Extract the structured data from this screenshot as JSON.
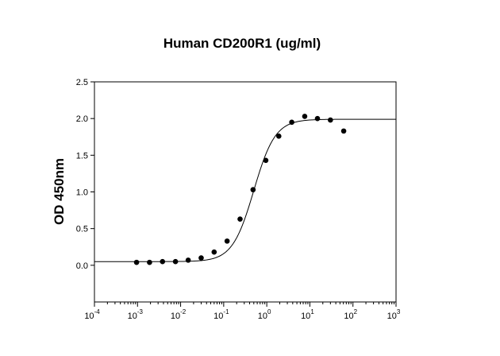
{
  "chart_data": {
    "type": "scatter",
    "title": "Human CD200R1 (ug/ml)",
    "xlabel": "",
    "ylabel": "OD 450nm",
    "x_scale": "log",
    "xlim": [
      0.0001,
      1000
    ],
    "ylim": [
      -0.5,
      2.5
    ],
    "x_ticks": [
      {
        "base": "10",
        "exp": "-4",
        "value": 0.0001
      },
      {
        "base": "10",
        "exp": "-3",
        "value": 0.001
      },
      {
        "base": "10",
        "exp": "-2",
        "value": 0.01
      },
      {
        "base": "10",
        "exp": "-1",
        "value": 0.1
      },
      {
        "base": "10",
        "exp": "0",
        "value": 1
      },
      {
        "base": "10",
        "exp": "1",
        "value": 10
      },
      {
        "base": "10",
        "exp": "2",
        "value": 100
      },
      {
        "base": "10",
        "exp": "3",
        "value": 1000
      }
    ],
    "y_ticks": [
      {
        "label": "0.0",
        "value": 0
      },
      {
        "label": "0.5",
        "value": 0.5
      },
      {
        "label": "1.0",
        "value": 1.0
      },
      {
        "label": "1.5",
        "value": 1.5
      },
      {
        "label": "2.0",
        "value": 2.0
      },
      {
        "label": "2.5",
        "value": 2.5
      }
    ],
    "grid": false,
    "legend": "none",
    "series": [
      {
        "points": [
          {
            "x": 0.00095,
            "y": 0.04
          },
          {
            "x": 0.0019,
            "y": 0.04
          },
          {
            "x": 0.0038,
            "y": 0.05
          },
          {
            "x": 0.0076,
            "y": 0.05
          },
          {
            "x": 0.015,
            "y": 0.07
          },
          {
            "x": 0.03,
            "y": 0.1
          },
          {
            "x": 0.06,
            "y": 0.18
          },
          {
            "x": 0.12,
            "y": 0.33
          },
          {
            "x": 0.24,
            "y": 0.63
          },
          {
            "x": 0.48,
            "y": 1.03
          },
          {
            "x": 0.95,
            "y": 1.43
          },
          {
            "x": 1.9,
            "y": 1.76
          },
          {
            "x": 3.8,
            "y": 1.95
          },
          {
            "x": 7.6,
            "y": 2.03
          },
          {
            "x": 15,
            "y": 2.0
          },
          {
            "x": 30,
            "y": 1.98
          },
          {
            "x": 61,
            "y": 1.83
          }
        ]
      }
    ],
    "fit_curve": {
      "model": "4PL",
      "bottom": 0.05,
      "top": 1.99,
      "ec50": 0.5,
      "hill": 1.75
    },
    "colors": {
      "points": "#000000",
      "curve": "#000000",
      "axes": "#000000"
    }
  }
}
